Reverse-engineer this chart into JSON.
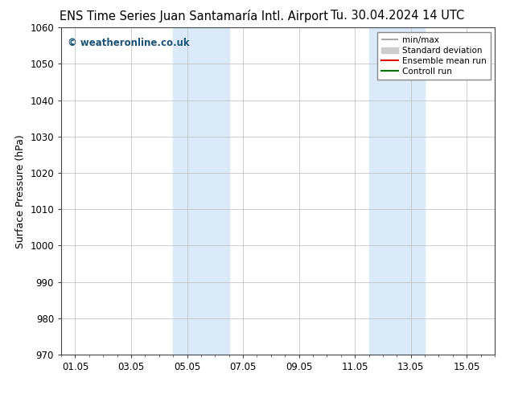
{
  "title_left": "ENS Time Series Juan Santamaría Intl. Airport",
  "title_right": "Tu. 30.04.2024 14 UTC",
  "ylabel": "Surface Pressure (hPa)",
  "ylim": [
    970,
    1060
  ],
  "yticks": [
    970,
    980,
    990,
    1000,
    1010,
    1020,
    1030,
    1040,
    1050,
    1060
  ],
  "xtick_labels": [
    "01.05",
    "03.05",
    "05.05",
    "07.05",
    "09.05",
    "11.05",
    "13.05",
    "15.05"
  ],
  "xtick_positions": [
    0,
    2,
    4,
    6,
    8,
    10,
    12,
    14
  ],
  "xlim": [
    -0.5,
    15.0
  ],
  "shaded_bands": [
    {
      "x_start": 3.5,
      "x_end": 5.5,
      "color": "#daeaf8"
    },
    {
      "x_start": 10.5,
      "x_end": 12.5,
      "color": "#daeaf8"
    }
  ],
  "watermark_text": "© weatheronline.co.uk",
  "watermark_color": "#1a5276",
  "background_color": "#ffffff",
  "plot_bg_color": "#ffffff",
  "title_fontsize": 10.5,
  "tick_fontsize": 8.5,
  "ylabel_fontsize": 9,
  "grid_color": "#bbbbbb",
  "grid_lw": 0.5,
  "legend_minmax_color": "#999999",
  "legend_std_color": "#cccccc",
  "legend_ensemble_color": "#dd0000",
  "legend_control_color": "#007700"
}
